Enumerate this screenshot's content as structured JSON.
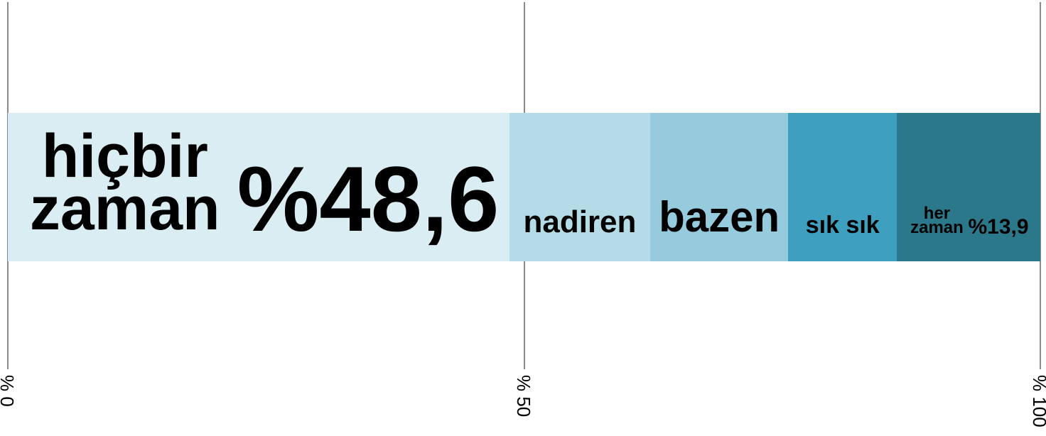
{
  "chart_data": {
    "type": "stacked-bar-100",
    "categories": [
      "hiçbir zaman",
      "nadiren",
      "bazen",
      "sık sık",
      "her zaman"
    ],
    "values": [
      48.6,
      13.6,
      13.4,
      10.5,
      13.9
    ],
    "value_labels": [
      "%48,6",
      null,
      null,
      null,
      "%13,9"
    ],
    "colors": [
      "#d9edf3",
      "#b5dbe6",
      "#95cbdc",
      "#3e9fbf",
      "#2c788b"
    ],
    "xlim": [
      0,
      100
    ],
    "xticks": [
      {
        "value": 0,
        "label": "% 0"
      },
      {
        "value": 50,
        "label": "% 50"
      },
      {
        "value": 100,
        "label": "% 100"
      }
    ],
    "grid": true
  }
}
